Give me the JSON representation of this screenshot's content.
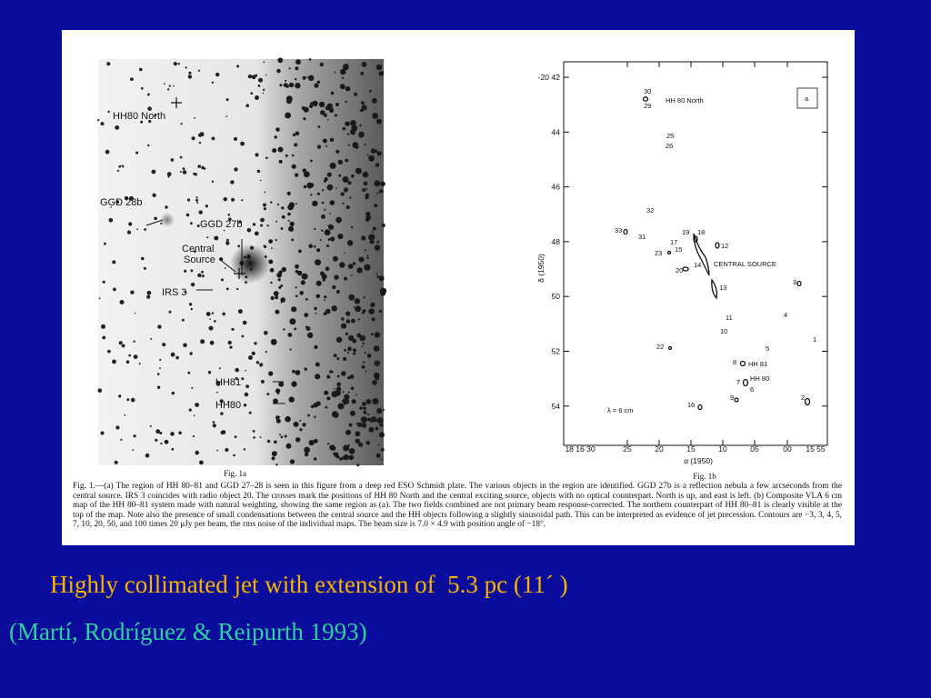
{
  "slide": {
    "figure": {
      "panel_a": {
        "labels": [
          "HH80 North",
          "GGD 28b",
          "GGD 27b",
          "Central",
          "Source",
          "IRS 3",
          "HH81",
          "HH80"
        ],
        "caption_label": "Fig. 1a"
      },
      "panel_b": {
        "dec_prefix": "-20",
        "y_ticks": [
          "42",
          "44",
          "46",
          "48",
          "50",
          "52",
          "54"
        ],
        "x_ticks": [
          "18 16 30",
          "25",
          "20",
          "15",
          "10",
          "05",
          "00",
          "15 55"
        ],
        "x_label": "α (1950)",
        "y_label": "δ (1950)",
        "box_label": "a",
        "wavelength": "λ = 6 cm",
        "map_labels": [
          "30",
          "29",
          "HH 80  North",
          "25",
          "26",
          "32",
          "33",
          "31",
          "19",
          "18",
          "17",
          "15",
          "12",
          "23",
          "14",
          "CENTRAL  SOURCE",
          "20",
          "13",
          "3",
          "11",
          "10",
          "4",
          "1",
          "22",
          "5",
          "8",
          "HH 81",
          "7",
          "HH 80",
          "6",
          "9",
          "2",
          "16"
        ],
        "caption_label": "Fig. 1b"
      },
      "caption": "Fig. 1.—(a) The region of HH 80–81 and GGD 27–28 is seen in this figure from a deep red ESO Schmidt plate. The various objects in the region are identified. GGD 27b is a reflection nebula a few arcseconds from the central source. IRS 3 coincides with radio object 20. The crosses mark the positions of HH 80 North and the central exciting source, objects with no optical counterpart. North is up, and east is left. (b) Composite VLA 6 cm map of the HH 80–81 system made with natural weighting, showing the same region as (a). The two fields combined are not primary beam response-corrected. The northern counterpart of HH 80–81 is clearly visible at the top of the map. Note also the presence of small condensations between the central source and the HH objects following a slightly sinusoidal path. This can be interpreted as evidence of jet precession. Contours are −3, 3, 4, 5, 7, 10, 20, 50, and 100 times 20 μJy per beam, the rms noise of the individual maps. The beam size is 7.0 × 4.9 with position angle of −18°."
    },
    "title": "Highly collimated jet with extension of  5.3 pc (11´ )",
    "reference": "(Martí, Rodríguez & Reipurth 1993)"
  }
}
